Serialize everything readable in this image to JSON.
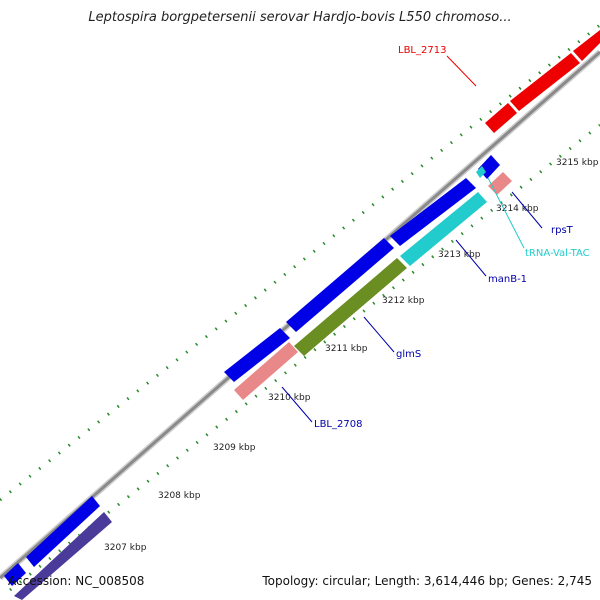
{
  "title": "Leptospira borgpetersenii serovar Hardjo-bovis L550 chromoso...",
  "footer": {
    "accession": "Accession: NC_008508",
    "summary": "Topology: circular; Length: 3,614,446 bp; Genes: 2,745"
  },
  "colors": {
    "backbone": "#8a8a8a",
    "tick_dots": "#2a8a2a",
    "cds_blue": "#0000e6",
    "cds_dark": "#4a3a9a",
    "rna_cyan": "#22cccc",
    "red_gene": "#ee0000",
    "pink_gene": "#e88888",
    "olive_gene": "#6b8e23"
  },
  "ticks": [
    {
      "label": "3207 kbp"
    },
    {
      "label": "3208 kbp"
    },
    {
      "label": "3209 kbp"
    },
    {
      "label": "3210 kbp"
    },
    {
      "label": "3211 kbp"
    },
    {
      "label": "3212 kbp"
    },
    {
      "label": "3213 kbp"
    },
    {
      "label": "3214 kbp"
    },
    {
      "label": "3215 kbp"
    }
  ],
  "gene_labels": [
    {
      "text": "LBL_2713",
      "color": "#ee0000"
    },
    {
      "text": "rpsT",
      "color": "#0000aa"
    },
    {
      "text": "tRNA-Val-TAC",
      "color": "#22cccc"
    },
    {
      "text": "manB-1",
      "color": "#0000aa"
    },
    {
      "text": "glmS",
      "color": "#0000aa"
    },
    {
      "text": "LBL_2708",
      "color": "#0000aa"
    }
  ]
}
